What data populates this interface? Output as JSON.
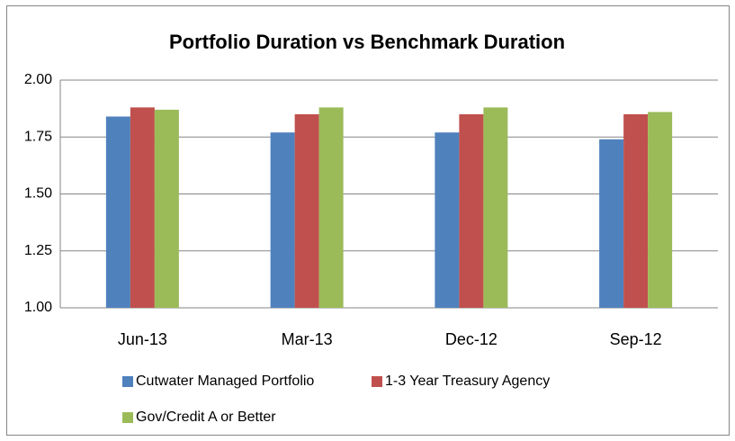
{
  "chart_data": {
    "type": "bar",
    "title": "Portfolio Duration vs Benchmark Duration",
    "categories": [
      "Jun-13",
      "Mar-13",
      "Dec-12",
      "Sep-12"
    ],
    "series": [
      {
        "name": "Cutwater Managed Portfolio",
        "color": "#4f81bd",
        "values": [
          1.84,
          1.77,
          1.77,
          1.74
        ]
      },
      {
        "name": "1-3 Year Treasury Agency",
        "color": "#c0504d",
        "values": [
          1.88,
          1.85,
          1.85,
          1.85
        ]
      },
      {
        "name": "Gov/Credit A or Better",
        "color": "#9bbb59",
        "values": [
          1.87,
          1.88,
          1.88,
          1.86
        ]
      }
    ],
    "ylim": [
      1,
      2
    ],
    "yticks": [
      {
        "value": 1,
        "label": "1.00"
      },
      {
        "value": 1.25,
        "label": "1.25"
      },
      {
        "value": 1.5,
        "label": "1.50"
      },
      {
        "value": 1.75,
        "label": "1.75"
      },
      {
        "value": 2,
        "label": "2.00"
      }
    ],
    "grid": true,
    "legend": "bottom"
  }
}
